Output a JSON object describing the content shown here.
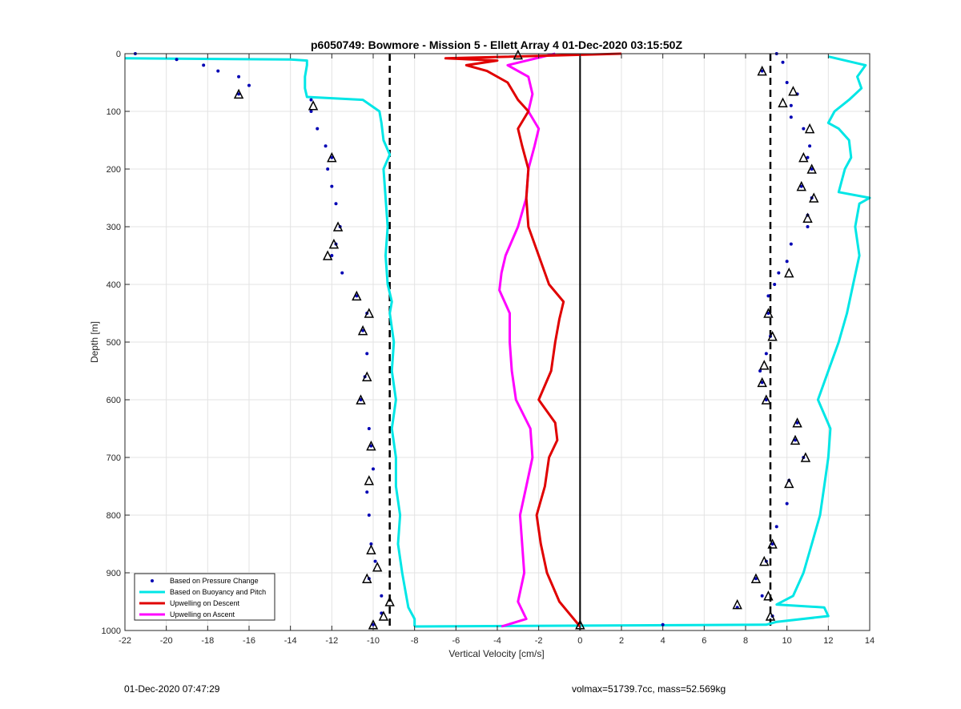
{
  "colors": {
    "pressure": "#0000b4",
    "buoyancy": "#00e6e6",
    "descent": "#e00000",
    "ascent": "#ff00ff",
    "grid": "#e3e3e3",
    "axis": "#000000"
  },
  "footer": {
    "timestamp": "01-Dec-2020 07:47:29",
    "params": "volmax=51739.7cc, mass=52.569kg"
  },
  "chart_data": {
    "type": "line",
    "title": "p6050749: Bowmore - Mission 5 - Ellett Array 4 01-Dec-2020 03:15:50Z",
    "xlabel": "Vertical Velocity [cm/s]",
    "ylabel": "Depth [m]",
    "xlim": [
      -22,
      14
    ],
    "ylim": [
      0,
      1000
    ],
    "y_reversed": true,
    "grid": true,
    "legend_position": "bottom-left",
    "xticks": [
      -22,
      -20,
      -18,
      -16,
      -14,
      -12,
      -10,
      -8,
      -6,
      -4,
      -2,
      0,
      2,
      4,
      6,
      8,
      10,
      12,
      14
    ],
    "yticks": [
      0,
      100,
      200,
      300,
      400,
      500,
      600,
      700,
      800,
      900,
      1000
    ],
    "reference_lines": [
      {
        "x": -9.2,
        "style": "dashed"
      },
      {
        "x": 9.2,
        "style": "dashed"
      },
      {
        "x": 0,
        "style": "solid"
      }
    ],
    "series": [
      {
        "name": "Based on Pressure Change",
        "kind": "points",
        "branches": [
          {
            "depth": [
              0,
              10,
              20,
              30,
              40,
              55,
              70,
              80,
              100,
              130,
              160,
              180,
              200,
              230,
              260,
              300,
              330,
              350,
              380,
              420,
              450,
              480,
              520,
              560,
              600,
              650,
              680,
              720,
              760,
              800,
              850,
              880,
              910,
              940,
              970,
              990
            ],
            "velocity": [
              -21.5,
              -19.5,
              -18.2,
              -17.5,
              -16.5,
              -16,
              -16.5,
              -13,
              -13,
              -12.7,
              -12.3,
              -12,
              -12.2,
              -12,
              -11.8,
              -11.6,
              -11.8,
              -12,
              -11.5,
              -10.8,
              -10.3,
              -10.5,
              -10.3,
              -10.4,
              -10.6,
              -10.2,
              -10.1,
              -10,
              -10.3,
              -10.2,
              -10.1,
              -9.9,
              -10.2,
              -9.6,
              -9.6,
              -10
            ]
          },
          {
            "depth": [
              0,
              15,
              30,
              50,
              70,
              90,
              110,
              130,
              160,
              180,
              200,
              230,
              250,
              280,
              300,
              330,
              360,
              380,
              400,
              420,
              450,
              490,
              520,
              550,
              570,
              600,
              640,
              670,
              700,
              740,
              780,
              820,
              850,
              880,
              910,
              940,
              960,
              975,
              990
            ],
            "velocity": [
              9.5,
              9.8,
              8.8,
              10,
              10.5,
              10.2,
              10.2,
              10.8,
              11.1,
              11,
              11.2,
              10.7,
              11.2,
              11,
              11,
              10.2,
              10,
              9.6,
              9.4,
              9.1,
              9.1,
              9.2,
              9,
              8.7,
              8.8,
              9,
              10.5,
              10.4,
              10.8,
              10.1,
              10,
              9.5,
              9.3,
              9,
              8.5,
              8.8,
              7.6,
              9.3,
              4
            ]
          }
        ]
      },
      {
        "name": "Based on Buoyancy and Pitch",
        "kind": "line",
        "branches": [
          {
            "depth": [
              8,
              10,
              12,
              20,
              40,
              60,
              75,
              80,
              100,
              120,
              150,
              175,
              200,
              250,
              300,
              350,
              400,
              430,
              450,
              500,
              550,
              600,
              650,
              700,
              750,
              800,
              850,
              900,
              940,
              960,
              980,
              993
            ],
            "velocity": [
              -22,
              -14,
              -13.2,
              -13.2,
              -13.3,
              -13.3,
              -13.2,
              -10.5,
              -9.7,
              -9.6,
              -9.5,
              -9.2,
              -9.5,
              -9.4,
              -9.3,
              -9.4,
              -9.3,
              -9.1,
              -9.2,
              -9,
              -9.1,
              -8.9,
              -9.1,
              -8.9,
              -8.9,
              -8.7,
              -8.8,
              -8.6,
              -8.4,
              -8.3,
              -8,
              -8
            ]
          },
          {
            "depth": [
              993,
              990,
              985,
              975,
              960,
              955,
              940,
              900,
              850,
              800,
              750,
              700,
              650,
              600,
              550,
              500,
              450,
              400,
              350,
              300,
              260,
              250,
              240,
              200,
              180,
              150,
              130,
              120,
              100,
              80,
              60,
              40,
              20,
              5
            ],
            "velocity": [
              -8,
              9,
              9.5,
              12,
              11.8,
              9.5,
              10.3,
              10.8,
              11.2,
              11.6,
              11.8,
              12,
              12.1,
              11.5,
              12,
              12.5,
              12.9,
              13.2,
              13.5,
              13.3,
              13.5,
              14,
              12.5,
              12.8,
              13.1,
              13,
              12.5,
              12,
              12.3,
              13,
              13.6,
              13.4,
              13.8,
              12
            ]
          }
        ]
      },
      {
        "name": "Upwelling on Descent",
        "kind": "line",
        "branches": [
          {
            "depth": [
              0,
              8,
              12,
              20,
              30,
              50,
              80,
              100,
              130,
              160,
              200,
              250,
              300,
              350,
              400,
              430,
              460,
              500,
              550,
              600,
              640,
              670,
              700,
              750,
              800,
              850,
              900,
              950,
              993
            ],
            "velocity": [
              2,
              -6.5,
              -4,
              -5.5,
              -4.5,
              -3.5,
              -3,
              -2.5,
              -3,
              -2.8,
              -2.5,
              -2.6,
              -2.5,
              -2,
              -1.5,
              -0.8,
              -1,
              -1.2,
              -1.4,
              -2,
              -1.2,
              -1.1,
              -1.5,
              -1.7,
              -2.1,
              -1.9,
              -1.6,
              -1,
              0
            ]
          }
        ]
      },
      {
        "name": "Upwelling on Ascent",
        "kind": "line",
        "branches": [
          {
            "depth": [
              0,
              20,
              40,
              70,
              100,
              130,
              160,
              200,
              250,
              300,
              350,
              380,
              410,
              450,
              500,
              550,
              600,
              650,
              700,
              750,
              800,
              850,
              900,
              950,
              980,
              993
            ],
            "velocity": [
              -1.2,
              -3.5,
              -2.5,
              -2.3,
              -2.5,
              -2,
              -2.2,
              -2.5,
              -2.6,
              -3,
              -3.6,
              -3.8,
              -3.9,
              -3.4,
              -3.4,
              -3.3,
              -3.1,
              -2.4,
              -2.3,
              -2.6,
              -2.9,
              -2.8,
              -2.7,
              -3,
              -2.6,
              -3.8
            ]
          }
        ]
      }
    ],
    "markers": {
      "depth": [
        2,
        70,
        90,
        180,
        300,
        330,
        350,
        420,
        450,
        480,
        560,
        600,
        680,
        740,
        860,
        890,
        910,
        950,
        975,
        990,
        30,
        65,
        85,
        130,
        180,
        200,
        230,
        250,
        285,
        380,
        450,
        490,
        540,
        570,
        600,
        640,
        670,
        700,
        745,
        850,
        880,
        910,
        940,
        955,
        975,
        990
      ],
      "velocity": [
        -3,
        -16.5,
        -12.9,
        -12,
        -11.7,
        -11.9,
        -12.2,
        -10.8,
        -10.2,
        -10.5,
        -10.3,
        -10.6,
        -10.1,
        -10.2,
        -10.1,
        -9.8,
        -10.3,
        -9.2,
        -9.5,
        -10,
        8.8,
        10.3,
        9.8,
        11.1,
        10.8,
        11.2,
        10.7,
        11.3,
        11,
        10.1,
        9.1,
        9.3,
        8.9,
        8.8,
        9,
        10.5,
        10.4,
        10.9,
        10.1,
        9.3,
        8.9,
        8.5,
        9.1,
        7.6,
        9.2,
        0
      ]
    }
  }
}
